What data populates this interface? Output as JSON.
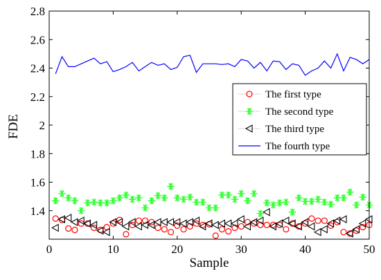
{
  "chart_data": {
    "type": "line",
    "xlabel": "Sample",
    "ylabel": "FDE",
    "xlim": [
      0,
      50
    ],
    "ylim": [
      1.2,
      2.8
    ],
    "xticks": [
      "0",
      "10",
      "20",
      "30",
      "40",
      "50"
    ],
    "yticks": [
      "1.4",
      "1.6",
      "1.8",
      "2",
      "2.2",
      "2.4",
      "2.6",
      "2.8"
    ],
    "grid": false,
    "legend_position": "right",
    "x": [
      1,
      2,
      3,
      4,
      5,
      6,
      7,
      8,
      9,
      10,
      11,
      12,
      13,
      14,
      15,
      16,
      17,
      18,
      19,
      20,
      21,
      22,
      23,
      24,
      25,
      26,
      27,
      28,
      29,
      30,
      31,
      32,
      33,
      34,
      35,
      36,
      37,
      38,
      39,
      40,
      41,
      42,
      43,
      44,
      45,
      46,
      47,
      48,
      49,
      50
    ],
    "series": [
      {
        "name": "The first type",
        "color": "#ff0000",
        "marker": "circle",
        "values": [
          1.345,
          1.335,
          1.275,
          1.265,
          1.31,
          1.31,
          1.28,
          1.265,
          1.285,
          1.31,
          1.335,
          1.235,
          1.3,
          1.33,
          1.33,
          1.32,
          1.28,
          1.27,
          1.25,
          1.295,
          1.27,
          1.29,
          1.31,
          1.3,
          1.305,
          1.225,
          1.27,
          1.255,
          1.28,
          1.29,
          1.32,
          1.31,
          1.3,
          1.3,
          1.3,
          1.3,
          1.27,
          1.31,
          1.29,
          1.31,
          1.345,
          1.33,
          1.33,
          1.295,
          1.32,
          1.25,
          1.24,
          1.26,
          1.285,
          1.3
        ]
      },
      {
        "name": "The second type",
        "color": "#33ff33",
        "marker": "star",
        "values": [
          1.47,
          1.52,
          1.49,
          1.47,
          1.4,
          1.455,
          1.46,
          1.455,
          1.455,
          1.47,
          1.49,
          1.51,
          1.48,
          1.49,
          1.42,
          1.47,
          1.505,
          1.49,
          1.57,
          1.49,
          1.48,
          1.495,
          1.46,
          1.46,
          1.42,
          1.42,
          1.51,
          1.51,
          1.48,
          1.52,
          1.47,
          1.52,
          1.38,
          1.455,
          1.44,
          1.455,
          1.46,
          1.39,
          1.49,
          1.465,
          1.465,
          1.48,
          1.46,
          1.445,
          1.49,
          1.49,
          1.53,
          1.44,
          1.495,
          1.44
        ]
      },
      {
        "name": "The third type",
        "color": "#000000",
        "marker": "triangle-left",
        "values": [
          1.28,
          1.34,
          1.35,
          1.32,
          1.33,
          1.31,
          1.3,
          1.26,
          1.25,
          1.32,
          1.32,
          1.29,
          1.32,
          1.29,
          1.3,
          1.3,
          1.32,
          1.32,
          1.32,
          1.32,
          1.31,
          1.32,
          1.33,
          1.29,
          1.31,
          1.3,
          1.31,
          1.31,
          1.31,
          1.34,
          1.29,
          1.32,
          1.33,
          1.39,
          1.29,
          1.31,
          1.33,
          1.31,
          1.29,
          1.32,
          1.29,
          1.25,
          1.27,
          1.31,
          1.33,
          1.34,
          1.24,
          1.27,
          1.31,
          1.34
        ]
      },
      {
        "name": "The fourth type",
        "color": "#0000ff",
        "marker": "none",
        "values": [
          2.36,
          2.48,
          2.41,
          2.41,
          2.43,
          2.45,
          2.47,
          2.43,
          2.445,
          2.375,
          2.39,
          2.41,
          2.44,
          2.38,
          2.41,
          2.44,
          2.42,
          2.43,
          2.39,
          2.405,
          2.48,
          2.49,
          2.37,
          2.43,
          2.43,
          2.43,
          2.425,
          2.43,
          2.41,
          2.46,
          2.45,
          2.4,
          2.44,
          2.38,
          2.45,
          2.445,
          2.39,
          2.43,
          2.42,
          2.35,
          2.38,
          2.4,
          2.45,
          2.4,
          2.5,
          2.38,
          2.475,
          2.46,
          2.43,
          2.46
        ]
      }
    ]
  }
}
